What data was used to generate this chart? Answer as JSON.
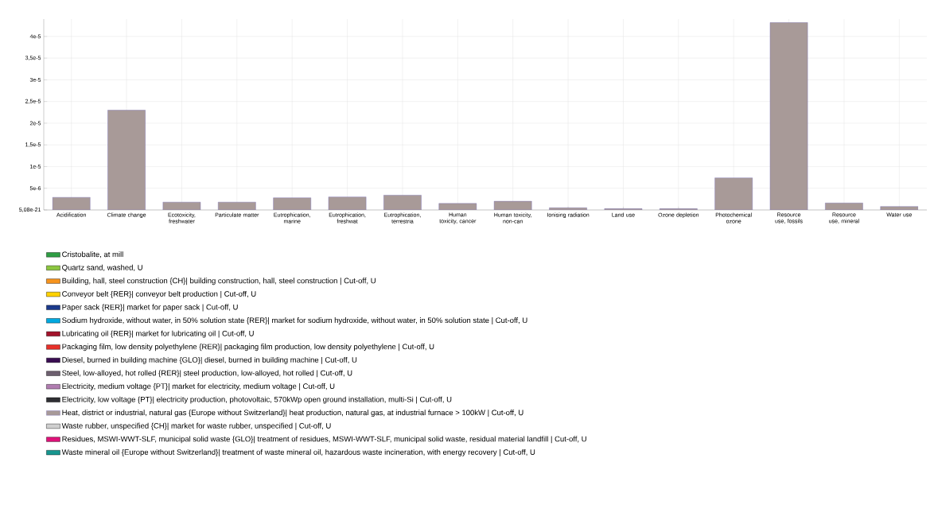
{
  "chart_data": {
    "type": "bar",
    "stacked": true,
    "grid": true,
    "legend": "bottom",
    "categories": [
      "Acidification",
      "Climate change",
      "Ecotoxicity, freshwater",
      "Particulate matter",
      "Eutrophication, marine",
      "Eutrophication, freshwat",
      "Eutrophication, terrestria",
      "Human toxicity, cancer",
      "Human toxicity, non-can",
      "Ionising radiation",
      "Land use",
      "Ozone depletion",
      "Photochemical ozone",
      "Resource use, fossils",
      "Resource use, mineral",
      "Water use"
    ],
    "ylim": [
      5.08e-21,
      4.4e-05
    ],
    "yticks": [
      {
        "value": 5.08e-21,
        "label": "5,08e-21"
      },
      {
        "value": 5e-06,
        "label": "5e-6"
      },
      {
        "value": 1e-05,
        "label": "1e-5"
      },
      {
        "value": 1.5e-05,
        "label": "1,5e-5"
      },
      {
        "value": 2e-05,
        "label": "2e-5"
      },
      {
        "value": 2.5e-05,
        "label": "2,5e-5"
      },
      {
        "value": 3e-05,
        "label": "3e-5"
      },
      {
        "value": 3.5e-05,
        "label": "3,5e-5"
      },
      {
        "value": 4e-05,
        "label": "4e-5"
      }
    ],
    "series": [
      {
        "name": "Cristobalite, at mill",
        "color": "#2e9e44",
        "values": [
          null,
          null,
          null,
          null,
          null,
          null,
          null,
          null,
          null,
          null,
          null,
          null,
          null,
          null,
          null,
          null
        ]
      },
      {
        "name": "Quartz sand, washed, U",
        "color": "#8cc63f",
        "values": [
          null,
          null,
          null,
          null,
          null,
          null,
          null,
          null,
          null,
          null,
          null,
          null,
          null,
          null,
          null,
          null
        ]
      },
      {
        "name": "Building, hall, steel construction {CH}| building construction, hall, steel construction | Cut-off, U",
        "color": "#f7941d",
        "values": [
          null,
          null,
          null,
          null,
          null,
          null,
          null,
          null,
          null,
          null,
          null,
          null,
          null,
          null,
          null,
          null
        ]
      },
      {
        "name": "Conveyor belt {RER}| conveyor belt production | Cut-off, U",
        "color": "#ffd200",
        "values": [
          null,
          null,
          null,
          null,
          null,
          null,
          null,
          null,
          null,
          null,
          null,
          null,
          null,
          null,
          null,
          null
        ]
      },
      {
        "name": "Paper sack {RER}| market for paper sack | Cut-off, U",
        "color": "#1b3a8c",
        "values": [
          null,
          null,
          null,
          null,
          null,
          null,
          null,
          null,
          null,
          null,
          null,
          null,
          null,
          null,
          null,
          null
        ]
      },
      {
        "name": "Sodium hydroxide, without water, in 50% solution state {RER}| market for sodium hydroxide, without water, in 50% solution state | Cut-off, U",
        "color": "#00a9e0",
        "values": [
          null,
          null,
          null,
          null,
          null,
          null,
          null,
          null,
          null,
          null,
          null,
          null,
          null,
          null,
          null,
          null
        ]
      },
      {
        "name": "Lubricating oil {RER}| market for lubricating oil | Cut-off, U",
        "color": "#a3132b",
        "values": [
          null,
          null,
          null,
          null,
          null,
          null,
          null,
          null,
          null,
          null,
          null,
          null,
          null,
          null,
          null,
          null
        ]
      },
      {
        "name": "Packaging film, low density polyethylene {RER}| packaging film production, low density polyethylene | Cut-off, U",
        "color": "#e8312a",
        "values": [
          null,
          null,
          null,
          null,
          null,
          null,
          null,
          null,
          null,
          null,
          null,
          null,
          null,
          null,
          null,
          null
        ]
      },
      {
        "name": "Diesel, burned in building machine {GLO}| diesel, burned in building machine | Cut-off, U",
        "color": "#3a0d52",
        "values": [
          null,
          null,
          null,
          null,
          null,
          null,
          null,
          null,
          null,
          null,
          null,
          null,
          null,
          null,
          null,
          null
        ]
      },
      {
        "name": "Steel, low-alloyed, hot rolled {RER}| steel production, low-alloyed, hot rolled | Cut-off, U",
        "color": "#6e6070",
        "values": [
          null,
          null,
          null,
          null,
          null,
          null,
          null,
          null,
          null,
          null,
          null,
          null,
          null,
          null,
          null,
          null
        ]
      },
      {
        "name": "Electricity, medium voltage {PT}| market for electricity, medium voltage | Cut-off, U",
        "color": "#b07cb0",
        "values": [
          null,
          null,
          null,
          null,
          null,
          null,
          null,
          null,
          null,
          null,
          null,
          null,
          null,
          null,
          null,
          null
        ]
      },
      {
        "name": "Electricity, low voltage {PT}| electricity production, photovoltaic, 570kWp open ground installation, multi-Si | Cut-off, U",
        "color": "#2f2f33",
        "values": [
          null,
          null,
          null,
          null,
          null,
          null,
          null,
          null,
          null,
          null,
          null,
          null,
          null,
          null,
          null,
          null
        ]
      },
      {
        "name": "Heat, district or industrial, natural gas {Europe without Switzerland}| heat production, natural gas, at industrial furnace > 100kW | Cut-off, U",
        "color": "#a89a98",
        "values": [
          2.9e-06,
          2.3e-05,
          1.8e-06,
          1.8e-06,
          2.8e-06,
          3e-06,
          3.4e-06,
          1.5e-06,
          2e-06,
          5e-07,
          3e-07,
          3e-07,
          7.4e-06,
          4.32e-05,
          1.6e-06,
          8e-07
        ]
      },
      {
        "name": "Waste rubber, unspecified {CH}| market for waste rubber, unspecified | Cut-off, U",
        "color": "#cfcfcf",
        "values": [
          null,
          null,
          null,
          null,
          null,
          null,
          null,
          null,
          null,
          null,
          null,
          null,
          null,
          null,
          null,
          null
        ]
      },
      {
        "name": "Residues, MSWI-WWT-SLF, municipal solid waste {GLO}| treatment of residues, MSWI-WWT-SLF, municipal solid waste, residual material landfill | Cut-off, U",
        "color": "#e0127a",
        "values": [
          null,
          null,
          null,
          null,
          null,
          null,
          null,
          null,
          null,
          null,
          null,
          null,
          null,
          null,
          null,
          null
        ]
      },
      {
        "name": "Waste mineral oil {Europe without Switzerland}| treatment of waste mineral oil, hazardous waste incineration, with energy recovery | Cut-off, U",
        "color": "#17968f",
        "values": [
          null,
          null,
          null,
          null,
          null,
          null,
          null,
          null,
          null,
          null,
          null,
          null,
          null,
          null,
          null,
          null
        ]
      }
    ]
  }
}
